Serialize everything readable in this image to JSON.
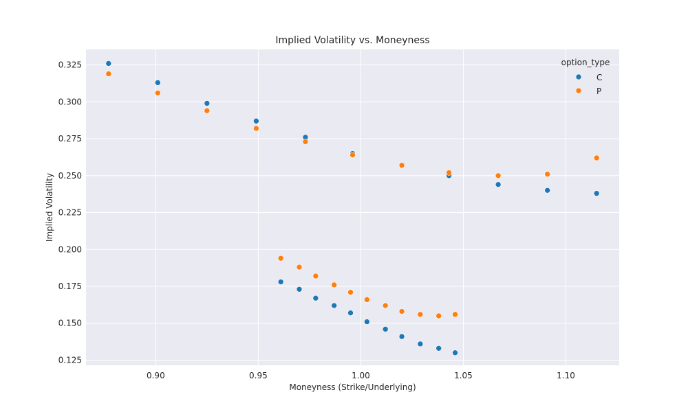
{
  "chart_data": {
    "type": "scatter",
    "title": "Implied Volatility vs. Moneyness",
    "xlabel": "Moneyness (Strike/Underlying)",
    "ylabel": "Implied Volatility",
    "xlim": [
      0.866,
      1.126
    ],
    "ylim": [
      0.1215,
      0.3355
    ],
    "xticks": [
      0.9,
      0.95,
      1.0,
      1.05,
      1.1
    ],
    "xtick_labels": [
      "0.90",
      "0.95",
      "1.00",
      "1.05",
      "1.10"
    ],
    "yticks": [
      0.125,
      0.15,
      0.175,
      0.2,
      0.225,
      0.25,
      0.275,
      0.3,
      0.325
    ],
    "ytick_labels": [
      "0.125",
      "0.150",
      "0.175",
      "0.200",
      "0.225",
      "0.250",
      "0.275",
      "0.300",
      "0.325"
    ],
    "grid": true,
    "legend": {
      "title": "option_type",
      "position": "top-right",
      "entries": [
        "C",
        "P"
      ]
    },
    "colors": {
      "C": "#1f77b4",
      "P": "#ff7f0e",
      "background": "#eaeaf2",
      "grid": "#ffffff"
    },
    "series": [
      {
        "name": "C",
        "points": [
          [
            0.877,
            0.326
          ],
          [
            0.901,
            0.313
          ],
          [
            0.925,
            0.299
          ],
          [
            0.949,
            0.287
          ],
          [
            0.973,
            0.276
          ],
          [
            0.996,
            0.265
          ],
          [
            1.043,
            0.25
          ],
          [
            1.067,
            0.244
          ],
          [
            1.091,
            0.24
          ],
          [
            1.115,
            0.238
          ],
          [
            0.961,
            0.178
          ],
          [
            0.97,
            0.173
          ],
          [
            0.978,
            0.167
          ],
          [
            0.987,
            0.162
          ],
          [
            0.995,
            0.157
          ],
          [
            1.003,
            0.151
          ],
          [
            1.012,
            0.146
          ],
          [
            1.02,
            0.141
          ],
          [
            1.029,
            0.136
          ],
          [
            1.038,
            0.133
          ],
          [
            1.046,
            0.13
          ]
        ]
      },
      {
        "name": "P",
        "points": [
          [
            0.877,
            0.319
          ],
          [
            0.901,
            0.306
          ],
          [
            0.925,
            0.294
          ],
          [
            0.949,
            0.282
          ],
          [
            0.973,
            0.273
          ],
          [
            0.996,
            0.264
          ],
          [
            1.02,
            0.257
          ],
          [
            1.043,
            0.252
          ],
          [
            1.067,
            0.25
          ],
          [
            1.091,
            0.251
          ],
          [
            1.115,
            0.262
          ],
          [
            0.961,
            0.194
          ],
          [
            0.97,
            0.188
          ],
          [
            0.978,
            0.182
          ],
          [
            0.987,
            0.176
          ],
          [
            0.995,
            0.171
          ],
          [
            1.003,
            0.166
          ],
          [
            1.012,
            0.162
          ],
          [
            1.02,
            0.158
          ],
          [
            1.029,
            0.156
          ],
          [
            1.038,
            0.155
          ],
          [
            1.046,
            0.156
          ]
        ]
      }
    ]
  }
}
